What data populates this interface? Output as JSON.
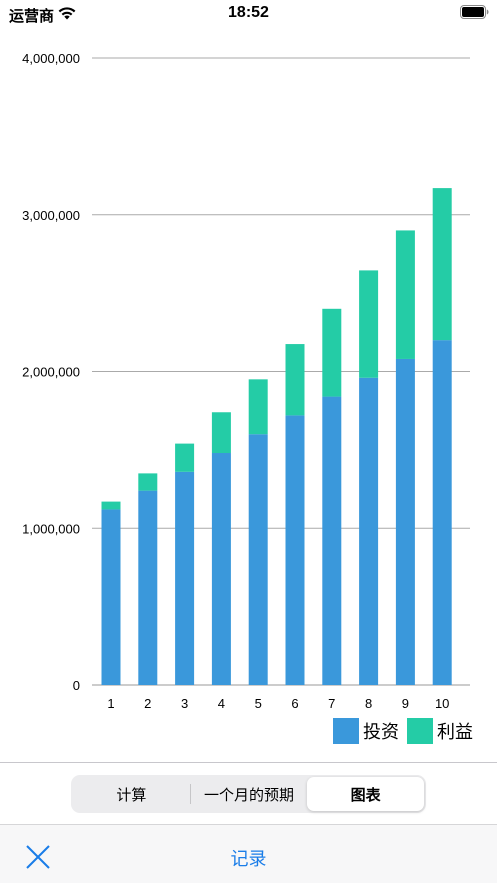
{
  "status_bar": {
    "carrier": "运营商",
    "time": "18:52"
  },
  "chart_data": {
    "type": "bar",
    "stacked": true,
    "categories": [
      "1",
      "2",
      "3",
      "4",
      "5",
      "6",
      "7",
      "8",
      "9",
      "10"
    ],
    "series": [
      {
        "name": "投资",
        "color": "#3a98db",
        "values": [
          1120000,
          1240000,
          1360000,
          1480000,
          1600000,
          1720000,
          1840000,
          1960000,
          2080000,
          2200000
        ]
      },
      {
        "name": "利益",
        "color": "#24cca6",
        "values": [
          50000,
          110000,
          180000,
          260000,
          350000,
          455000,
          560000,
          685000,
          820000,
          970000
        ]
      }
    ],
    "yticks": [
      "0",
      "1,000,000",
      "2,000,000",
      "3,000,000",
      "4,000,000"
    ],
    "ylim": [
      0,
      4000000
    ],
    "grid": true,
    "legend_position": "bottom-right"
  },
  "tabs": [
    {
      "label": "计算",
      "selected": false
    },
    {
      "label": "一个月的预期",
      "selected": false
    },
    {
      "label": "图表",
      "selected": true
    }
  ],
  "toolbar": {
    "close_icon": "close-icon",
    "record_label": "记录",
    "accent": "#1a7de8"
  }
}
